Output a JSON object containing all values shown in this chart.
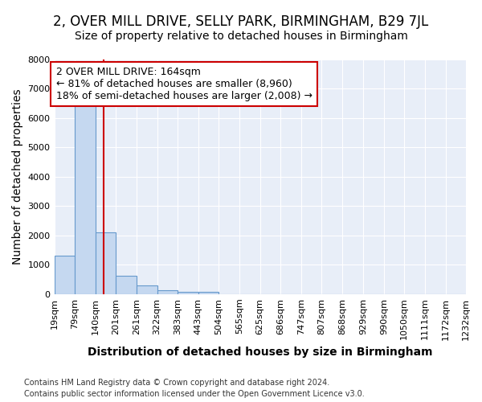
{
  "title": "2, OVER MILL DRIVE, SELLY PARK, BIRMINGHAM, B29 7JL",
  "subtitle": "Size of property relative to detached houses in Birmingham",
  "xlabel": "Distribution of detached houses by size in Birmingham",
  "ylabel": "Number of detached properties",
  "footnote1": "Contains HM Land Registry data © Crown copyright and database right 2024.",
  "footnote2": "Contains public sector information licensed under the Open Government Licence v3.0.",
  "bin_edges": [
    19,
    79,
    140,
    201,
    261,
    322,
    383,
    443,
    504,
    565,
    625,
    686,
    747,
    807,
    868,
    929,
    990,
    1050,
    1111,
    1172,
    1232
  ],
  "bar_heights": [
    1300,
    6600,
    2100,
    620,
    300,
    120,
    90,
    80,
    0,
    0,
    0,
    0,
    0,
    0,
    0,
    0,
    0,
    0,
    0,
    0
  ],
  "bar_color": "#c5d8f0",
  "bar_edge_color": "#6699cc",
  "property_size": 164,
  "redline_color": "#cc0000",
  "annotation_text": "2 OVER MILL DRIVE: 164sqm\n← 81% of detached houses are smaller (8,960)\n18% of semi-detached houses are larger (2,008) →",
  "annotation_box_color": "#ffffff",
  "annotation_box_edge_color": "#cc0000",
  "ylim": [
    0,
    8000
  ],
  "yticks": [
    0,
    1000,
    2000,
    3000,
    4000,
    5000,
    6000,
    7000,
    8000
  ],
  "plot_bg_color": "#e8eef8",
  "fig_bg_color": "#ffffff",
  "title_fontsize": 12,
  "subtitle_fontsize": 10,
  "axis_label_fontsize": 10,
  "tick_fontsize": 8,
  "annotation_fontsize": 9
}
